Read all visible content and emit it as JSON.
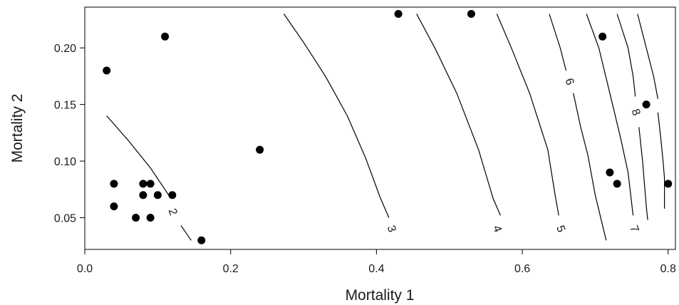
{
  "chart_data": {
    "type": "scatter",
    "title": "",
    "xlabel": "Mortality 1",
    "ylabel": "Mortality 2",
    "xlim": [
      0.0,
      0.81
    ],
    "ylim": [
      0.022,
      0.236
    ],
    "xticks": [
      0.0,
      0.2,
      0.4,
      0.6,
      0.8
    ],
    "xtick_labels": [
      "0.0",
      "0.2",
      "0.4",
      "0.6",
      "0.8"
    ],
    "yticks": [
      0.05,
      0.1,
      0.15,
      0.2
    ],
    "ytick_labels": [
      "0.05",
      "0.10",
      "0.15",
      "0.20"
    ],
    "grid": false,
    "marker_color": "#000000",
    "points": [
      {
        "x": 0.03,
        "y": 0.18
      },
      {
        "x": 0.11,
        "y": 0.21
      },
      {
        "x": 0.04,
        "y": 0.08
      },
      {
        "x": 0.04,
        "y": 0.06
      },
      {
        "x": 0.08,
        "y": 0.08
      },
      {
        "x": 0.09,
        "y": 0.08
      },
      {
        "x": 0.08,
        "y": 0.07
      },
      {
        "x": 0.1,
        "y": 0.07
      },
      {
        "x": 0.12,
        "y": 0.07
      },
      {
        "x": 0.07,
        "y": 0.05
      },
      {
        "x": 0.09,
        "y": 0.05
      },
      {
        "x": 0.16,
        "y": 0.03
      },
      {
        "x": 0.24,
        "y": 0.11
      },
      {
        "x": 0.43,
        "y": 0.23
      },
      {
        "x": 0.53,
        "y": 0.23
      },
      {
        "x": 0.71,
        "y": 0.21
      },
      {
        "x": 0.77,
        "y": 0.15
      },
      {
        "x": 0.72,
        "y": 0.09
      },
      {
        "x": 0.73,
        "y": 0.08
      },
      {
        "x": 0.8,
        "y": 0.08
      }
    ],
    "contours": [
      {
        "label": "2",
        "line": [
          [
            0.03,
            0.14
          ],
          [
            0.06,
            0.118
          ],
          [
            0.09,
            0.094
          ],
          [
            0.115,
            0.07
          ]
        ],
        "line2": [
          [
            0.132,
            0.043
          ],
          [
            0.146,
            0.03
          ]
        ],
        "label_at": [
          0.12,
          0.055
        ]
      },
      {
        "label": "3",
        "line": [
          [
            0.273,
            0.23
          ],
          [
            0.3,
            0.205
          ],
          [
            0.33,
            0.175
          ],
          [
            0.36,
            0.14
          ],
          [
            0.385,
            0.103
          ],
          [
            0.405,
            0.068
          ],
          [
            0.417,
            0.05
          ]
        ],
        "label_at": [
          0.42,
          0.04
        ]
      },
      {
        "label": "4",
        "line": [
          [
            0.455,
            0.23
          ],
          [
            0.48,
            0.2
          ],
          [
            0.51,
            0.16
          ],
          [
            0.54,
            0.11
          ],
          [
            0.56,
            0.067
          ],
          [
            0.57,
            0.052
          ]
        ],
        "label_at": [
          0.565,
          0.04
        ]
      },
      {
        "label": "5",
        "line": [
          [
            0.565,
            0.23
          ],
          [
            0.585,
            0.2
          ],
          [
            0.61,
            0.16
          ],
          [
            0.635,
            0.11
          ],
          [
            0.645,
            0.07
          ],
          [
            0.65,
            0.052
          ]
        ],
        "label_at": [
          0.652,
          0.04
        ]
      },
      {
        "label": "6",
        "line": [
          [
            0.637,
            0.23
          ],
          [
            0.652,
            0.2
          ],
          [
            0.66,
            0.18
          ]
        ],
        "line2": [
          [
            0.67,
            0.16
          ],
          [
            0.68,
            0.13
          ],
          [
            0.69,
            0.105
          ],
          [
            0.7,
            0.07
          ],
          [
            0.715,
            0.03
          ]
        ],
        "label_at": [
          0.664,
          0.17
        ]
      },
      {
        "label": "7",
        "line": [
          [
            0.688,
            0.23
          ],
          [
            0.705,
            0.2
          ],
          [
            0.72,
            0.16
          ],
          [
            0.735,
            0.12
          ],
          [
            0.745,
            0.09
          ],
          [
            0.752,
            0.052
          ]
        ],
        "label_at": [
          0.753,
          0.04
        ]
      },
      {
        "label": "8",
        "line": [
          [
            0.73,
            0.23
          ],
          [
            0.745,
            0.2
          ],
          [
            0.752,
            0.175
          ],
          [
            0.755,
            0.157
          ]
        ],
        "line2": [
          [
            0.76,
            0.13
          ],
          [
            0.765,
            0.1
          ],
          [
            0.77,
            0.06
          ],
          [
            0.772,
            0.048
          ]
        ],
        "label_at": [
          0.755,
          0.143
        ]
      },
      {
        "label": "",
        "line": [
          [
            0.758,
            0.23
          ],
          [
            0.77,
            0.2
          ],
          [
            0.78,
            0.175
          ],
          [
            0.786,
            0.155
          ]
        ]
      },
      {
        "label": "",
        "line": [
          [
            0.786,
            0.143
          ],
          [
            0.79,
            0.12
          ],
          [
            0.793,
            0.1
          ],
          [
            0.795,
            0.085
          ],
          [
            0.795,
            0.058
          ]
        ]
      }
    ]
  }
}
